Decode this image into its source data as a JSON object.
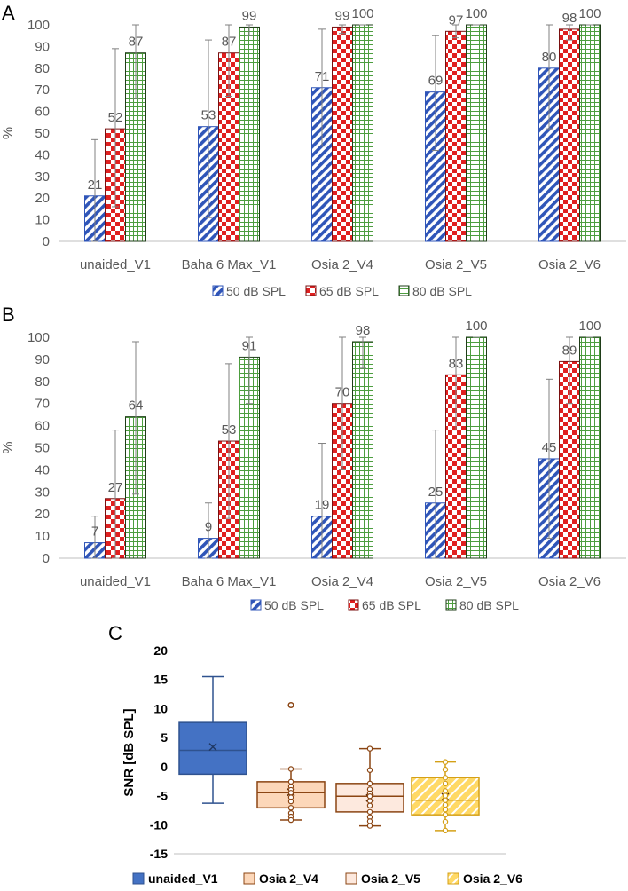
{
  "colors": {
    "blue": "#2f55b8",
    "red": "#e02020",
    "green": "#4d9e3f",
    "box_blue_fill": "#4472c4",
    "box_blue_stroke": "#2f528f",
    "box_brown_stroke": "#8b4513",
    "box_peach_fill": "#fcd7b9",
    "box_light_fill": "#fde9de",
    "box_yellow_fill": "#ffd966",
    "box_yellow_stroke": "#d4a017",
    "text": "#595959",
    "axis": "#bfbfbf"
  },
  "chart_data": [
    {
      "panel_label": "A",
      "type": "bar",
      "ylabel": "%",
      "ylim": [
        0,
        100
      ],
      "yticks": [
        0,
        10,
        20,
        30,
        40,
        50,
        60,
        70,
        80,
        90,
        100
      ],
      "categories": [
        "unaided_V1",
        "Baha 6 Max_V1",
        "Osia 2_V4",
        "Osia 2_V5",
        "Osia 2_V6"
      ],
      "series": [
        {
          "name": "50 dB SPL",
          "pattern": "diagonal",
          "values": [
            21,
            53,
            71,
            69,
            80
          ],
          "err_low": [
            0,
            11,
            44,
            42,
            52
          ],
          "err_high": [
            47,
            93,
            98,
            95,
            100
          ]
        },
        {
          "name": "65 dB SPL",
          "pattern": "checker",
          "values": [
            52,
            87,
            99,
            97,
            98
          ],
          "err_low": [
            16,
            67,
            96,
            94,
            93
          ],
          "err_high": [
            89,
            100,
            100,
            100,
            100
          ]
        },
        {
          "name": "80 dB SPL",
          "pattern": "grid",
          "values": [
            87,
            99,
            100,
            100,
            100
          ],
          "err_low": [
            66,
            95,
            100,
            100,
            100
          ],
          "err_high": [
            100,
            100,
            100,
            100,
            100
          ]
        }
      ],
      "legend": [
        "50 dB SPL",
        "65 dB SPL",
        "80 dB SPL"
      ]
    },
    {
      "panel_label": "B",
      "type": "bar",
      "ylabel": "%",
      "ylim": [
        0,
        100
      ],
      "yticks": [
        0,
        10,
        20,
        30,
        40,
        50,
        60,
        70,
        80,
        90,
        100
      ],
      "categories": [
        "unaided_V1",
        "Baha 6 Max_V1",
        "Osia 2_V4",
        "Osia 2_V5",
        "Osia 2_V6"
      ],
      "series": [
        {
          "name": "50 dB SPL",
          "pattern": "diagonal",
          "values": [
            7,
            9,
            19,
            25,
            45
          ],
          "err_low": [
            0,
            0,
            0,
            0,
            9
          ],
          "err_high": [
            19,
            25,
            52,
            58,
            81
          ]
        },
        {
          "name": "65 dB SPL",
          "pattern": "checker",
          "values": [
            27,
            53,
            70,
            83,
            89
          ],
          "err_low": [
            0,
            18,
            40,
            58,
            70
          ],
          "err_high": [
            58,
            88,
            100,
            100,
            100
          ]
        },
        {
          "name": "80 dB SPL",
          "pattern": "grid",
          "values": [
            64,
            91,
            98,
            100,
            100
          ],
          "err_low": [
            29,
            70,
            86,
            100,
            100
          ],
          "err_high": [
            98,
            100,
            100,
            100,
            100
          ]
        }
      ],
      "legend": [
        "50 dB SPL",
        "65 dB SPL",
        "80 dB SPL"
      ]
    },
    {
      "panel_label": "C",
      "type": "box",
      "ylabel": "SNR [dB SPL]",
      "ylim": [
        -15,
        20
      ],
      "yticks": [
        -15,
        -10,
        -5,
        0,
        5,
        10,
        15,
        20
      ],
      "series": [
        {
          "name": "unaided_V1",
          "min": -6.3,
          "q1": -1.3,
          "median": 2.8,
          "q3": 7.6,
          "max": 15.5,
          "mean": 3.4,
          "outliers": [],
          "points": [],
          "fill": "blue"
        },
        {
          "name": "Osia 2_V4",
          "min": -9.2,
          "q1": -7.1,
          "median": -4.5,
          "q3": -2.6,
          "max": -0.4,
          "mean": -4.4,
          "outliers": [
            10.6
          ],
          "points": [
            -0.4,
            -2.6,
            -3.4,
            -4.0,
            -4.5,
            -5.3,
            -6.0,
            -7.1,
            -8.0,
            -8.6,
            -9.2
          ],
          "fill": "peach"
        },
        {
          "name": "Osia 2_V5",
          "min": -10.2,
          "q1": -7.8,
          "median": -5.1,
          "q3": -2.9,
          "max": 3.1,
          "mean": -5.4,
          "outliers": [],
          "points": [
            3.1,
            -0.6,
            -2.9,
            -3.9,
            -4.6,
            -5.1,
            -5.9,
            -6.7,
            -7.8,
            -8.7,
            -9.4,
            -10.2
          ],
          "fill": "light"
        },
        {
          "name": "Osia 2_V6",
          "min": -11.0,
          "q1": -8.3,
          "median": -5.8,
          "q3": -1.9,
          "max": 0.8,
          "mean": -5.2,
          "outliers": [],
          "points": [
            0.8,
            -0.5,
            -1.9,
            -2.9,
            -4.2,
            -5.0,
            -5.8,
            -6.6,
            -7.4,
            -8.3,
            -9.5,
            -11.0
          ],
          "fill": "yellow"
        }
      ],
      "legend": [
        "unaided_V1",
        "Osia 2_V4",
        "Osia 2_V5",
        "Osia 2_V6"
      ]
    }
  ]
}
